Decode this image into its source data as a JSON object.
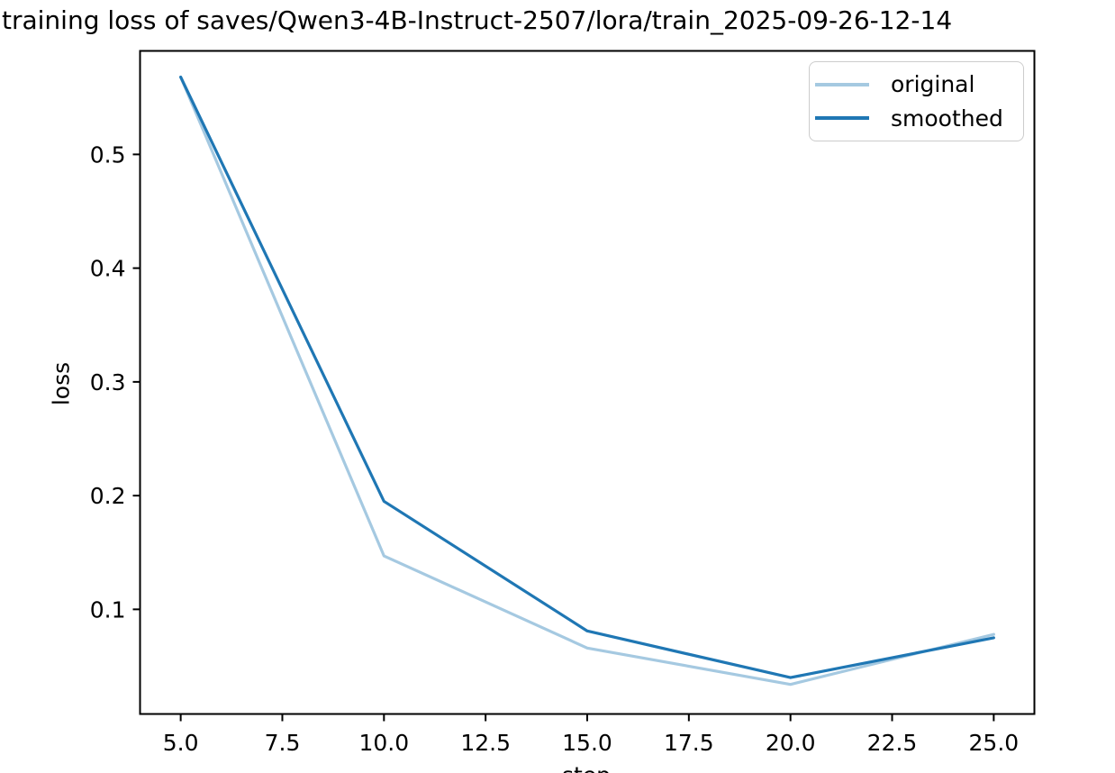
{
  "figure": {
    "background": "#ffffff",
    "text_color": "#000000",
    "spine_color": "#000000"
  },
  "chart_data": {
    "type": "line",
    "title": "training loss of saves/Qwen3-4B-Instruct-2507/lora/train_2025-09-26-12-14",
    "xlabel": "step",
    "ylabel": "loss",
    "x": [
      5,
      10,
      15,
      20,
      25
    ],
    "series": [
      {
        "name": "original",
        "color": "#1f77b4",
        "stroke_opacity": 0.4,
        "values": [
          0.568,
          0.147,
          0.066,
          0.034,
          0.078
        ]
      },
      {
        "name": "smoothed",
        "color": "#1f77b4",
        "stroke_opacity": 1,
        "values": [
          0.568,
          0.195,
          0.081,
          0.04,
          0.075
        ]
      }
    ],
    "xlim": [
      4,
      26
    ],
    "ylim": [
      0.008,
      0.591
    ],
    "xticks": [
      5,
      7.5,
      10,
      12.5,
      15,
      17.5,
      20,
      22.5,
      25
    ],
    "xtick_labels": [
      "5.0",
      "7.5",
      "10.0",
      "12.5",
      "15.0",
      "17.5",
      "20.0",
      "22.5",
      "25.0"
    ],
    "yticks": [
      0.1,
      0.2,
      0.3,
      0.4,
      0.5
    ],
    "ytick_labels": [
      "0.1",
      "0.2",
      "0.3",
      "0.4",
      "0.5"
    ],
    "grid": false,
    "legend_position": "upper right"
  }
}
